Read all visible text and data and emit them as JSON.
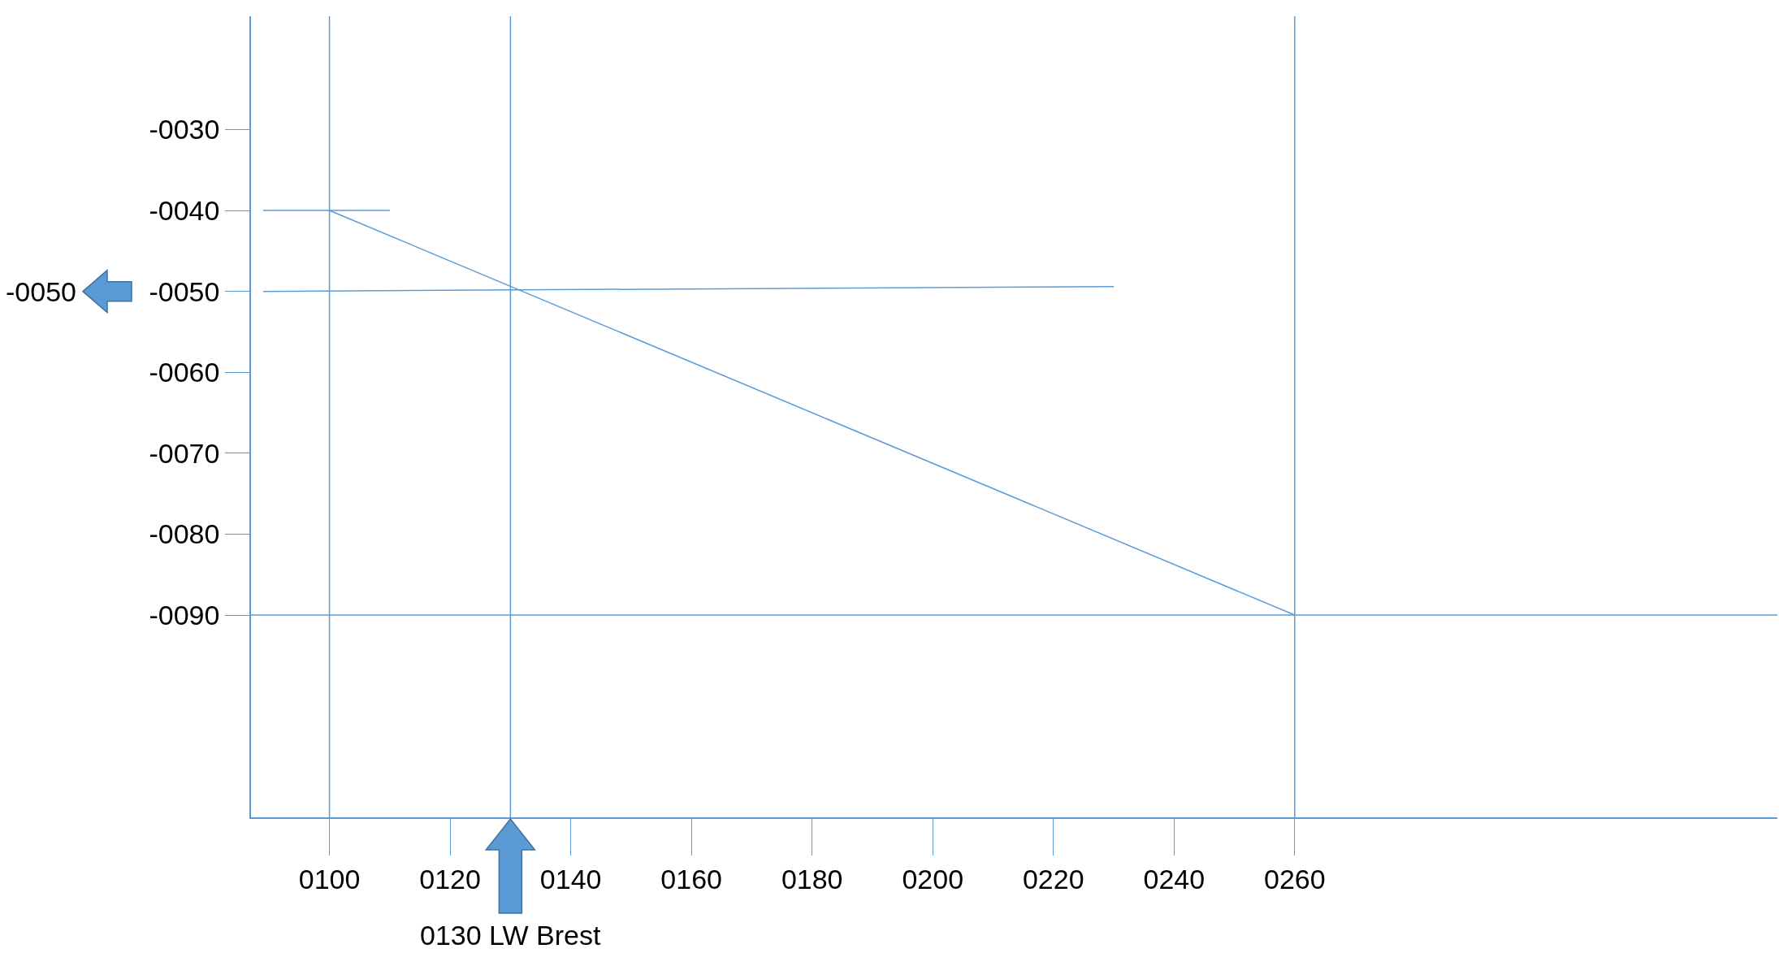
{
  "chart_data": {
    "type": "line",
    "series": [
      {
        "color": "#5b9bd5",
        "x": [
          100,
          260
        ],
        "values": [
          -40,
          -90
        ]
      },
      {
        "color": "#5b9bd5",
        "x": [
          89,
          110
        ],
        "values": [
          -40,
          -40
        ]
      },
      {
        "color": "#5b9bd5",
        "x": [
          89,
          230
        ],
        "values": [
          -50,
          -49.4
        ]
      }
    ],
    "xlim": [
      87,
      340
    ],
    "ylim": [
      -115,
      -16
    ],
    "xticks": [
      {
        "value": 100,
        "label": "0100"
      },
      {
        "value": 120,
        "label": "0120"
      },
      {
        "value": 140,
        "label": "0140"
      },
      {
        "value": 160,
        "label": "0160"
      },
      {
        "value": 180,
        "label": "0180"
      },
      {
        "value": 200,
        "label": "0200"
      },
      {
        "value": 220,
        "label": "0220"
      },
      {
        "value": 240,
        "label": "0240"
      },
      {
        "value": 260,
        "label": "0260"
      }
    ],
    "yticks": [
      {
        "value": -30,
        "label": "-0030"
      },
      {
        "value": -40,
        "label": "-0040"
      },
      {
        "value": -50,
        "label": "-0050"
      },
      {
        "value": -60,
        "label": "-0060"
      },
      {
        "value": -70,
        "label": "-0070"
      },
      {
        "value": -80,
        "label": "-0080"
      },
      {
        "value": -90,
        "label": "-0090"
      }
    ],
    "ref_lines": [
      {
        "axis": "x",
        "value": 100,
        "color": "#5b9bd5"
      },
      {
        "axis": "x",
        "value": 130,
        "color": "#5b9bd5"
      },
      {
        "axis": "x",
        "value": 260,
        "color": "#5b9bd5"
      },
      {
        "axis": "y",
        "value": -90,
        "color": "#5b9bd5"
      }
    ],
    "annotations": [
      "0130 LW Brest",
      "-0050"
    ],
    "marker": "none",
    "line_style": "solid"
  }
}
